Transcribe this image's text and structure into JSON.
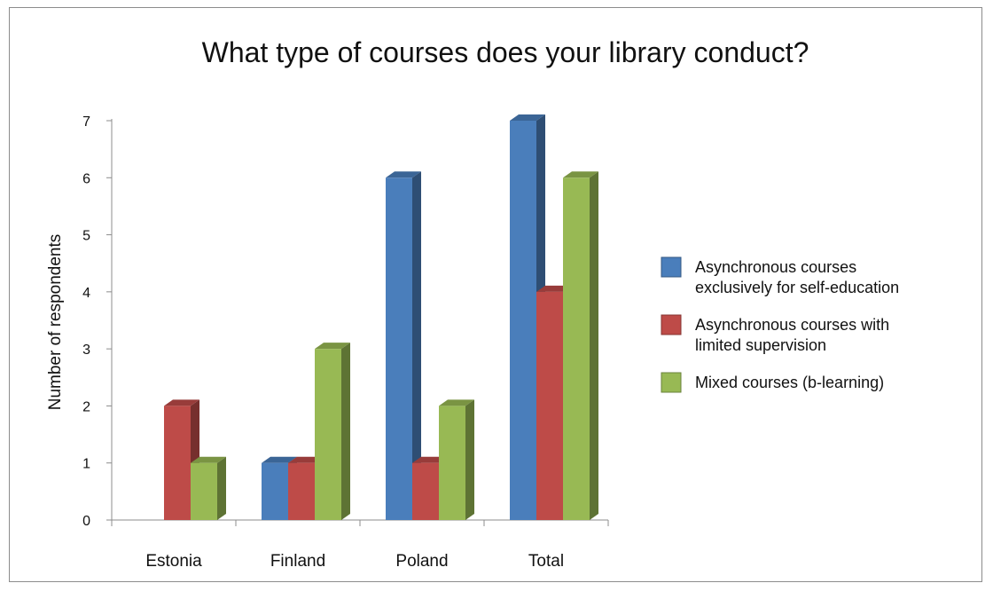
{
  "chart_data": {
    "type": "bar",
    "title": "What type of courses does your library conduct?",
    "xlabel": "",
    "ylabel": "Number of respondents",
    "ylim": [
      0,
      7
    ],
    "yticks": [
      "0",
      "1",
      "2",
      "3",
      "4",
      "5",
      "6",
      "7"
    ],
    "categories": [
      "Estonia",
      "Finland",
      "Poland",
      "Total"
    ],
    "series": [
      {
        "name": "Asynchronous courses exclusively for self-education",
        "legend_lines": [
          "Asynchronous courses",
          "exclusively for self-education"
        ],
        "values": [
          0,
          1,
          6,
          7
        ],
        "color": "#4a7ebb"
      },
      {
        "name": "Asynchronous courses with limited supervision",
        "legend_lines": [
          "Asynchronous courses with",
          "limited supervision"
        ],
        "values": [
          2,
          1,
          1,
          4
        ],
        "color": "#be4b48"
      },
      {
        "name": "Mixed courses (b-learning)",
        "legend_lines": [
          "Mixed courses (b-learning)"
        ],
        "values": [
          1,
          3,
          2,
          6
        ],
        "color": "#98b954"
      }
    ],
    "grid": false,
    "style": "3d-clustered-column",
    "legend_position": "right"
  }
}
